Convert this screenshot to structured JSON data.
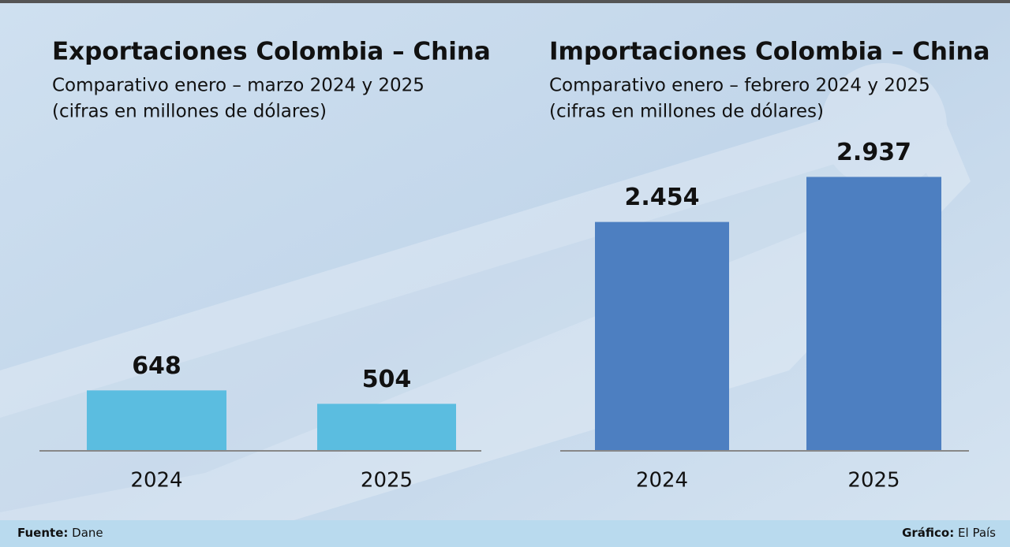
{
  "chart_data": [
    {
      "type": "bar",
      "title": "Exportaciones  Colombia – China",
      "subtitle": [
        "Comparativo enero – marzo 2024 y 2025",
        "(cifras en millones de dólares)"
      ],
      "categories": [
        "2024",
        "2025"
      ],
      "values": [
        648,
        504
      ],
      "color": "#5bbde0",
      "ylim": [
        0,
        3000
      ]
    },
    {
      "type": "bar",
      "title": "Importaciones Colombia – China",
      "subtitle": [
        "Comparativo enero – febrero 2024 y 2025",
        "(cifras en millones de dólares)"
      ],
      "categories": [
        "2024",
        "2025"
      ],
      "values": [
        2454,
        2937
      ],
      "value_labels": [
        "2.454",
        "2.937"
      ],
      "color": "#4d7fc1",
      "ylim": [
        0,
        3000
      ]
    }
  ],
  "footer": {
    "source_label": "Fuente:",
    "source": "Dane",
    "credit_label": "Gráfico:",
    "credit": "El País"
  }
}
